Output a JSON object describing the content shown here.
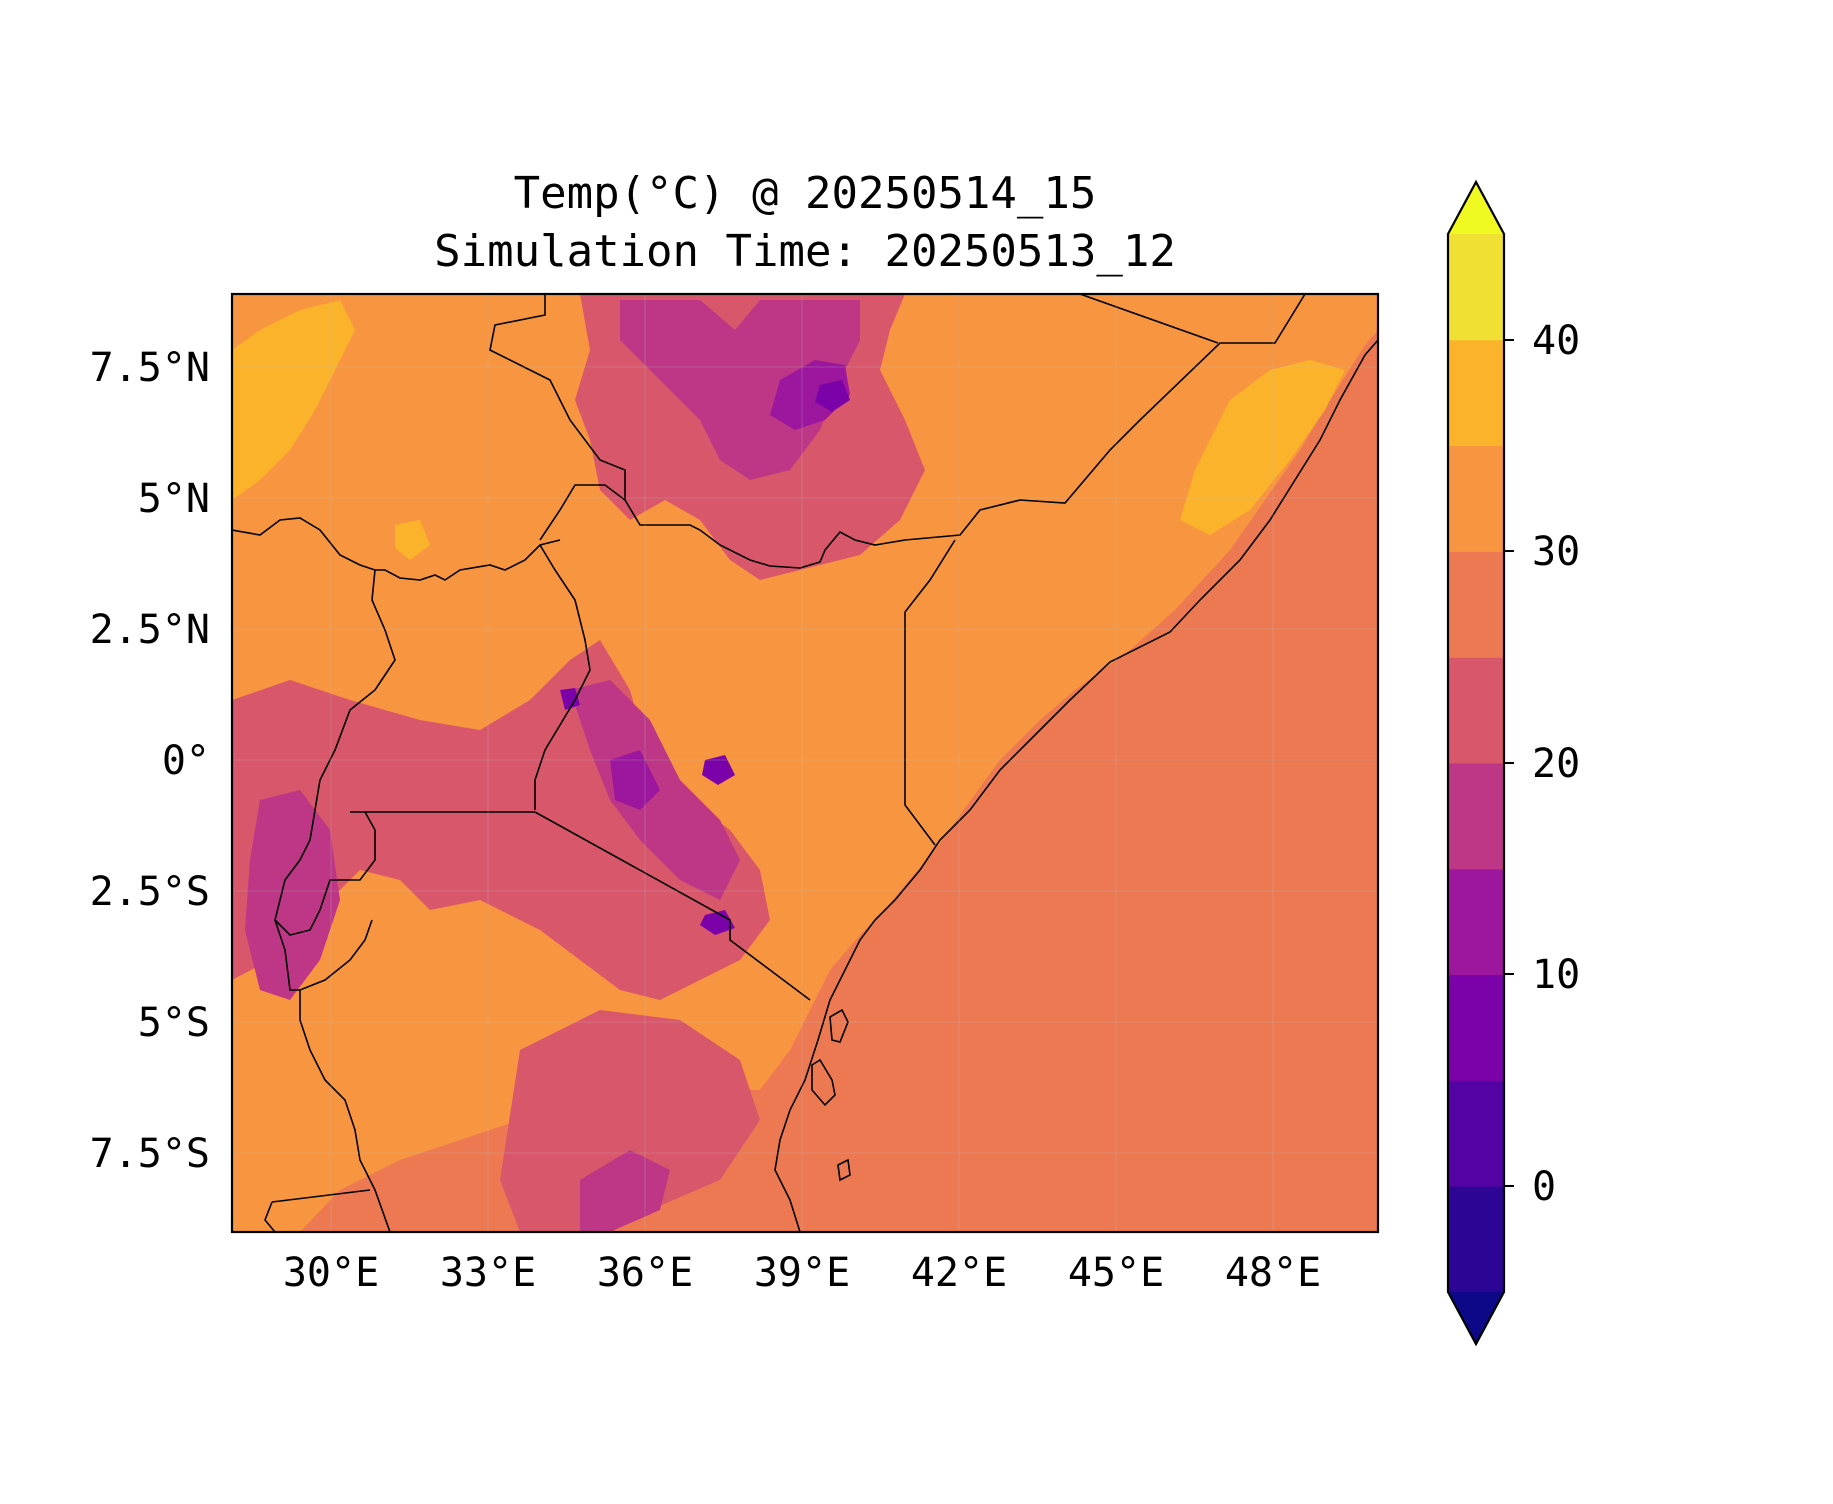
{
  "title": {
    "line1": "Temp(°C) @ 20250514_15",
    "line2": "Simulation Time: 20250513_12"
  },
  "axes": {
    "x_ticks": [
      "30°E",
      "33°E",
      "36°E",
      "39°E",
      "42°E",
      "45°E",
      "48°E"
    ],
    "y_ticks": [
      "7.5°N",
      "5°N",
      "2.5°N",
      "0°",
      "2.5°S",
      "5°S",
      "7.5°S"
    ]
  },
  "colorbar": {
    "tick_labels": [
      "0",
      "10",
      "20",
      "30",
      "40"
    ],
    "colors": [
      "#0d0887",
      "#2c0594",
      "#5302a3",
      "#7a02a8",
      "#9c179e",
      "#bd3786",
      "#d8576b",
      "#ed7953",
      "#f89540",
      "#fbb32b",
      "#f0e034",
      "#f0f921"
    ]
  },
  "map_colors": {
    "sea": "#ed7953",
    "land_hot": "#f89540",
    "land_very_hot": "#fbb32b",
    "highland_cool": "#d8576b",
    "highland_cold": "#bd3786",
    "peak_cold": "#9c179e",
    "summit": "#7a02a8",
    "border": "#000000"
  }
}
